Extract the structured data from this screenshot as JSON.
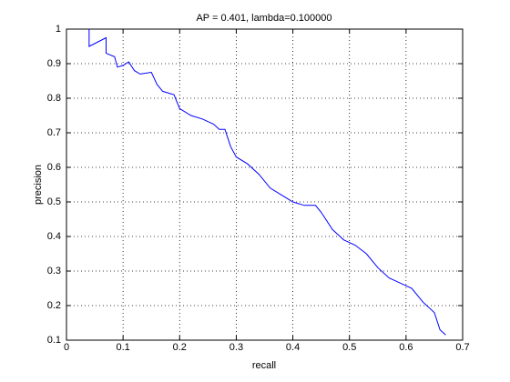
{
  "chart_data": {
    "type": "line",
    "title": "AP = 0.401, lambda=0.100000",
    "x_label": "recall",
    "y_label": "precision",
    "xlim": [
      0,
      0.7
    ],
    "xticks": [
      0,
      0.1,
      0.2,
      0.3,
      0.4,
      0.5,
      0.6,
      0.7
    ],
    "ylim": [
      0.1,
      1
    ],
    "yticks": [
      0.1,
      0.2,
      0.3,
      0.4,
      0.5,
      0.6,
      0.7,
      0.8,
      0.9,
      1
    ],
    "grid": true,
    "series": [
      {
        "color": "#0000ff",
        "x": [
          0.04,
          0.04,
          0.07,
          0.07,
          0.085,
          0.09,
          0.1,
          0.11,
          0.12,
          0.13,
          0.15,
          0.16,
          0.17,
          0.19,
          0.2,
          0.22,
          0.24,
          0.26,
          0.27,
          0.28,
          0.29,
          0.3,
          0.32,
          0.34,
          0.36,
          0.38,
          0.4,
          0.42,
          0.44,
          0.45,
          0.47,
          0.49,
          0.51,
          0.53,
          0.55,
          0.57,
          0.59,
          0.61,
          0.63,
          0.65,
          0.66,
          0.67
        ],
        "values": [
          1.0,
          0.95,
          0.975,
          0.93,
          0.92,
          0.89,
          0.895,
          0.905,
          0.88,
          0.87,
          0.875,
          0.84,
          0.82,
          0.81,
          0.77,
          0.75,
          0.74,
          0.725,
          0.71,
          0.71,
          0.66,
          0.63,
          0.61,
          0.58,
          0.54,
          0.52,
          0.5,
          0.49,
          0.49,
          0.47,
          0.42,
          0.39,
          0.375,
          0.35,
          0.31,
          0.28,
          0.265,
          0.25,
          0.21,
          0.18,
          0.13,
          0.115
        ]
      }
    ]
  }
}
